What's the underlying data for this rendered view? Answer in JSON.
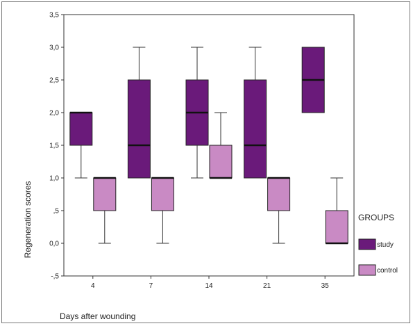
{
  "chart_data": {
    "type": "boxplot",
    "xlabel": "Days after wounding",
    "ylabel": "Regeneration scores",
    "ylim": [
      -0.5,
      3.5
    ],
    "yticks": [
      {
        "value": 3.5,
        "label": "3,5"
      },
      {
        "value": 3.0,
        "label": "3,0"
      },
      {
        "value": 2.5,
        "label": "2,5"
      },
      {
        "value": 2.0,
        "label": "2,0"
      },
      {
        "value": 1.5,
        "label": "1,5"
      },
      {
        "value": 1.0,
        "label": "1,0"
      },
      {
        "value": 0.5,
        "label": ",5"
      },
      {
        "value": 0.0,
        "label": "0,0"
      },
      {
        "value": -0.5,
        "label": "-,5"
      }
    ],
    "categories": [
      "4",
      "7",
      "14",
      "21",
      "35"
    ],
    "legend": {
      "title": "GROUPS",
      "position": "right"
    },
    "series": [
      {
        "name": "study",
        "color": "#6a1a7a",
        "boxes": [
          {
            "min": 1.0,
            "q1": 1.5,
            "median": 2.0,
            "q3": 2.0,
            "max": 2.0
          },
          {
            "min": 1.0,
            "q1": 1.0,
            "median": 1.5,
            "q3": 2.5,
            "max": 3.0
          },
          {
            "min": 1.0,
            "q1": 1.5,
            "median": 2.0,
            "q3": 2.5,
            "max": 3.0
          },
          {
            "min": 1.0,
            "q1": 1.0,
            "median": 1.5,
            "q3": 2.5,
            "max": 3.0
          },
          {
            "min": 2.0,
            "q1": 2.0,
            "median": 2.5,
            "q3": 3.0,
            "max": 3.0
          }
        ]
      },
      {
        "name": "control",
        "color": "#c98ac4",
        "boxes": [
          {
            "min": 0.0,
            "q1": 0.5,
            "median": 1.0,
            "q3": 1.0,
            "max": 1.0
          },
          {
            "min": 0.0,
            "q1": 0.5,
            "median": 1.0,
            "q3": 1.0,
            "max": 1.0
          },
          {
            "min": 1.0,
            "q1": 1.0,
            "median": 1.0,
            "q3": 1.5,
            "max": 2.0
          },
          {
            "min": 0.0,
            "q1": 0.5,
            "median": 1.0,
            "q3": 1.0,
            "max": 1.0
          },
          {
            "min": 0.0,
            "q1": 0.0,
            "median": 0.0,
            "q3": 0.5,
            "max": 1.0
          }
        ]
      }
    ]
  }
}
